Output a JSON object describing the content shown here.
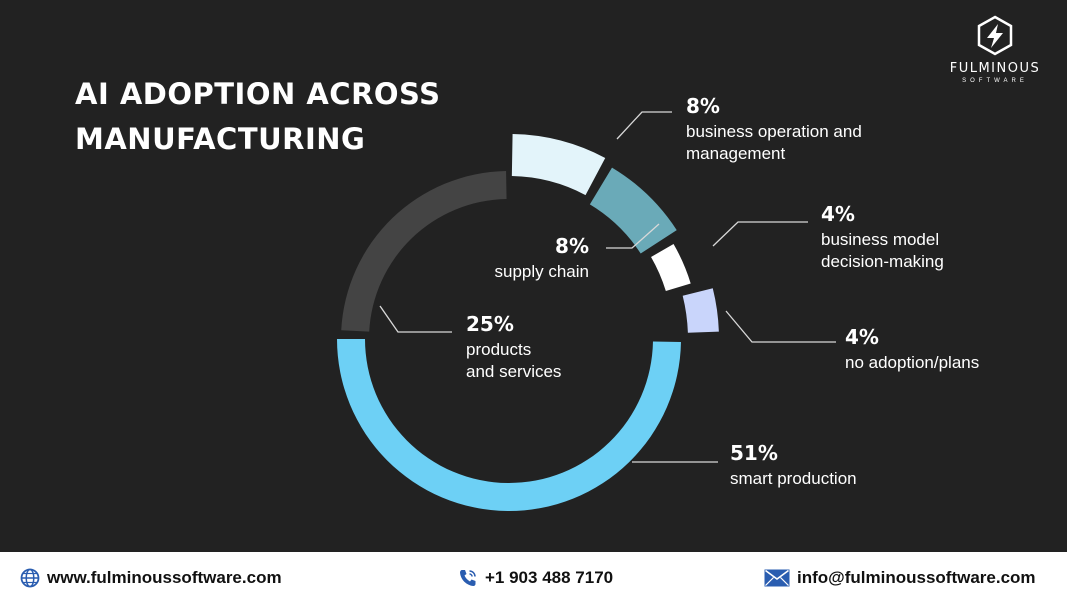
{
  "title": "AI ADOPTION ACROSS\nMANUFACTURING",
  "logo": {
    "brand": "FULMINOUS",
    "sub": "SOFTWARE",
    "icon": "lightning-hexagon-icon"
  },
  "colors": {
    "background": "#222222",
    "smart_production": "#6dd0f5",
    "products_services": "#444444",
    "supply_chain": "#6aaab8",
    "business_operation": "#e3f4fa",
    "business_model": "#ffffff",
    "no_adoption": "#c9d5fb",
    "leader": "#d8d8d8"
  },
  "chart_data": {
    "type": "pie",
    "style": "segmented-donut",
    "title": "AI ADOPTION ACROSS MANUFACTURING",
    "slices": [
      {
        "label_lines": [
          "business operation and",
          "management"
        ],
        "value": 8,
        "percent": "8%"
      },
      {
        "label_lines": [
          "supply chain"
        ],
        "value": 8,
        "percent": "8%"
      },
      {
        "label_lines": [
          "business model",
          "decision-making"
        ],
        "value": 4,
        "percent": "4%"
      },
      {
        "label_lines": [
          "no adoption/plans"
        ],
        "value": 4,
        "percent": "4%"
      },
      {
        "label_lines": [
          "smart production"
        ],
        "value": 51,
        "percent": "51%"
      },
      {
        "label_lines": [
          "products",
          "and services"
        ],
        "value": 25,
        "percent": "25%"
      }
    ]
  },
  "footer": {
    "website": "www.fulminoussoftware.com",
    "phone": "+1 903 488 7170",
    "email": "info@fulminoussoftware.com"
  }
}
